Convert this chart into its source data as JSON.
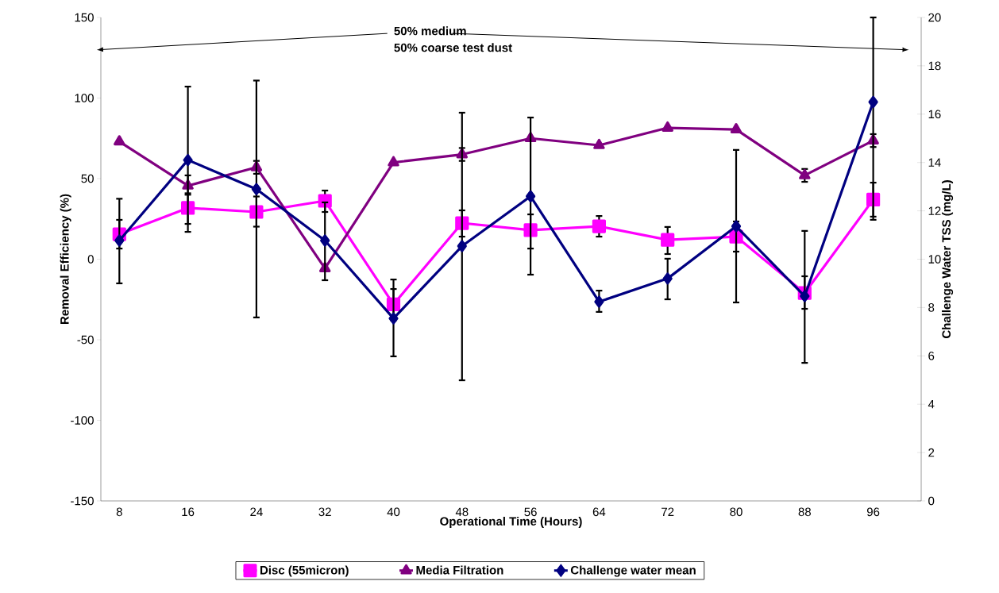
{
  "chart_data": {
    "type": "line",
    "xlabel": "Operational Time (Hours)",
    "ylabel": "Removal Efficiency (%)",
    "y2label": "Challenge Water TSS (mg/L)",
    "annotations": [
      "50% medium",
      "50% coarse test dust"
    ],
    "categories": [
      "8",
      "16",
      "24",
      "32",
      "40",
      "48",
      "56",
      "64",
      "72",
      "80",
      "88",
      "96"
    ],
    "ylim": [
      -150,
      150
    ],
    "yticks": [
      -150,
      -100,
      -50,
      0,
      50,
      100,
      150
    ],
    "y2lim": [
      0,
      20
    ],
    "y2ticks": [
      0,
      2,
      4,
      6,
      8,
      10,
      12,
      14,
      16,
      18,
      20
    ],
    "grid": false,
    "legend": "bottom",
    "series": [
      {
        "name": "Disc (55micron)",
        "color": "#ff00ff",
        "marker": "square",
        "values": [
          15.5,
          31.8,
          29.3,
          36.2,
          -28,
          22.4,
          18,
          20.4,
          12,
          14,
          -21,
          37
        ],
        "errors": [
          [
            6.6,
            24.4
          ],
          [
            21.9,
            40.9
          ],
          [
            20.2,
            38.9
          ],
          [
            29.3,
            42.6
          ],
          [
            -38,
            -18.5
          ],
          [
            14.0,
            30.3
          ],
          [
            6.6,
            27.8
          ],
          [
            14.0,
            26.8
          ],
          [
            3.2,
            20.0
          ],
          [
            4.7,
            23.4
          ],
          [
            -30.8,
            -10.6
          ],
          [
            26.4,
            47.5
          ]
        ]
      },
      {
        "name": "Media Filtration",
        "color": "#800080",
        "marker": "triangle",
        "values": [
          73,
          45.6,
          57,
          -5.7,
          60,
          65,
          75,
          70.7,
          81.5,
          80.5,
          52,
          73.6
        ],
        "errors": [
          null,
          [
            40,
            52
          ],
          [
            53,
            61
          ],
          null,
          null,
          [
            61,
            69
          ],
          null,
          null,
          null,
          null,
          [
            48,
            56
          ],
          [
            69.6,
            77.6
          ]
        ]
      },
      {
        "name": "Challenge water mean",
        "color": "#000080",
        "marker": "diamond",
        "axis": "y2",
        "values": [
          10.77,
          14.1,
          12.9,
          10.77,
          7.55,
          10.54,
          12.6,
          8.24,
          9.2,
          11.36,
          8.47,
          16.5
        ],
        "errors": [
          [
            9.0,
            12.5
          ],
          [
            11.13,
            17.14
          ],
          [
            7.59,
            17.39
          ],
          [
            9.13,
            12.35
          ],
          [
            5.98,
            9.16
          ],
          [
            4.99,
            16.06
          ],
          [
            9.36,
            15.86
          ],
          [
            7.82,
            8.7
          ],
          [
            8.34,
            10.02
          ],
          [
            8.21,
            14.52
          ],
          [
            5.71,
            11.17
          ],
          [
            11.63,
            20
          ]
        ]
      }
    ]
  }
}
